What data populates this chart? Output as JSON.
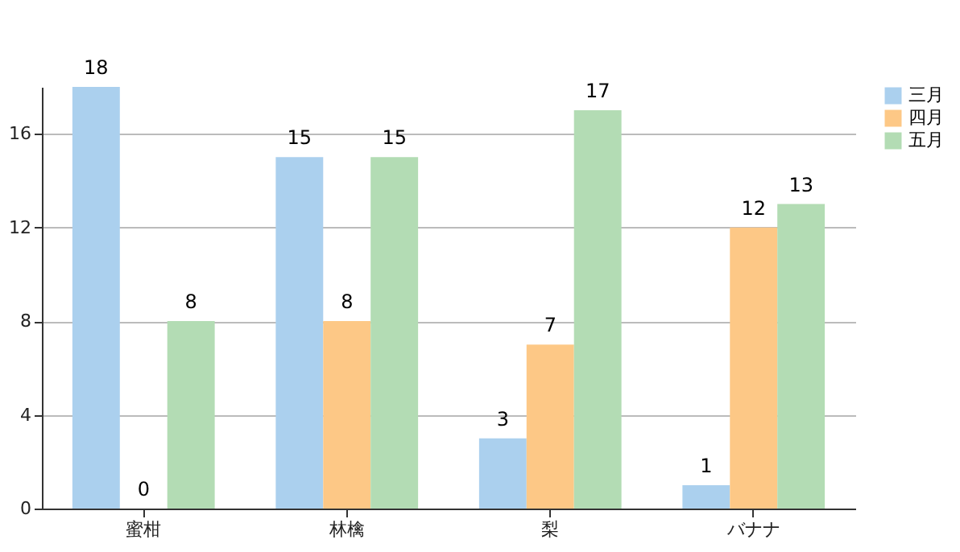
{
  "chart_data": {
    "type": "bar",
    "categories": [
      "蜜柑",
      "林檎",
      "梨",
      "バナナ"
    ],
    "series": [
      {
        "name": "三月",
        "color": "#abd0ee",
        "values": [
          18,
          15,
          3,
          1
        ]
      },
      {
        "name": "四月",
        "color": "#fdc886",
        "values": [
          0,
          8,
          7,
          12
        ]
      },
      {
        "name": "五月",
        "color": "#b3dcb4",
        "values": [
          8,
          15,
          17,
          13
        ]
      }
    ],
    "ylim": [
      0,
      18
    ],
    "yticks": [
      0,
      4,
      8,
      12,
      16
    ],
    "grid": "y",
    "legend": "right",
    "data_labels": true
  }
}
